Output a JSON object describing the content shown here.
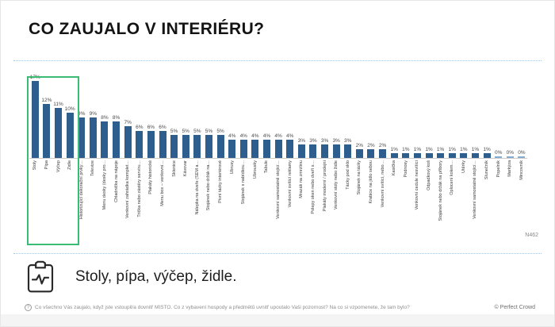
{
  "page": {
    "title": "CO ZAUJALO V INTERIÉRU?",
    "sample_note": "N462",
    "summary": "Stoly, pípa, výčep, židle.",
    "footnote_icon": "question-circle-icon",
    "footnote": "Co všechno Vás zaujalo, když jste vstoupil/a dovnitř MÍSTO. Co z vybavení hospody a předmětů uvnitř upoutalo Vaši pozornost? Na co si vzpomenete, že tam bylo?",
    "copyright": "© Perfect Crowd"
  },
  "colors": {
    "bar": "#2e5e8e",
    "zero_bar": "#85abd0",
    "highlight_box": "#3cbb75",
    "separator": "#a9c4de"
  },
  "chart_data": {
    "type": "bar",
    "title": "CO ZAUJALO V INTERIÉRU?",
    "unit": "%",
    "ylim": [
      0,
      17
    ],
    "grid": false,
    "legend": "none",
    "value_labels": "above bars",
    "category_label_rotation": -90,
    "highlight": {
      "categories": [
        "Stoly",
        "Pípa",
        "Výčep",
        "Židle"
      ],
      "box_color": "#3cbb75"
    },
    "categories": [
      "Stoly",
      "Pípa",
      "Výčep",
      "Židle",
      "Historizující dekorační prvky…",
      "Televize",
      "Menu desky (desky pro…",
      "Chladnička na nápoje",
      "Venkovní zahrádka komplet…",
      "Trička nebo zástěry servíru…",
      "Plakáty historické",
      "Menu box – venkovní…",
      "Sklenice",
      "Kávovar",
      "Nálepka na dveře (SEM a…",
      "Stojánek nebo držák na…",
      "Pivní tácky interiérové",
      "Ubrusy",
      "Stojánek s nabídkou…",
      "Ubrousky",
      "Tabule",
      "Venkovní samostatně stojící…",
      "Venkovní svítící reklamy",
      "Mrazák na zmrzlinu",
      "Polepy oken nebo dveří s…",
      "Plakáty moderní / prodejní",
      "Venkovní stoly nebo židle",
      "Tácky pod sklo",
      "Stojánek na tácky",
      "Krabice na jídlo sebou",
      "Venkovní svítící, nebo…",
      "Kasička",
      "Podnosy",
      "Venkovní cedule nesvítící",
      "Odpadkový koš",
      "Stojánek nebo držák na příbory",
      "Oplocení kolem…",
      "Utěrky",
      "Venkovní samostatně stojící…",
      "Slunečník",
      "Popelník",
      "Markýza",
      "Mincovník"
    ],
    "values": [
      17,
      12,
      11,
      10,
      9,
      9,
      8,
      8,
      7,
      6,
      6,
      6,
      5,
      5,
      5,
      5,
      5,
      4,
      4,
      4,
      4,
      4,
      4,
      3,
      3,
      3,
      3,
      3,
      2,
      2,
      2,
      1,
      1,
      1,
      1,
      1,
      1,
      1,
      1,
      1,
      0,
      0,
      0
    ]
  }
}
